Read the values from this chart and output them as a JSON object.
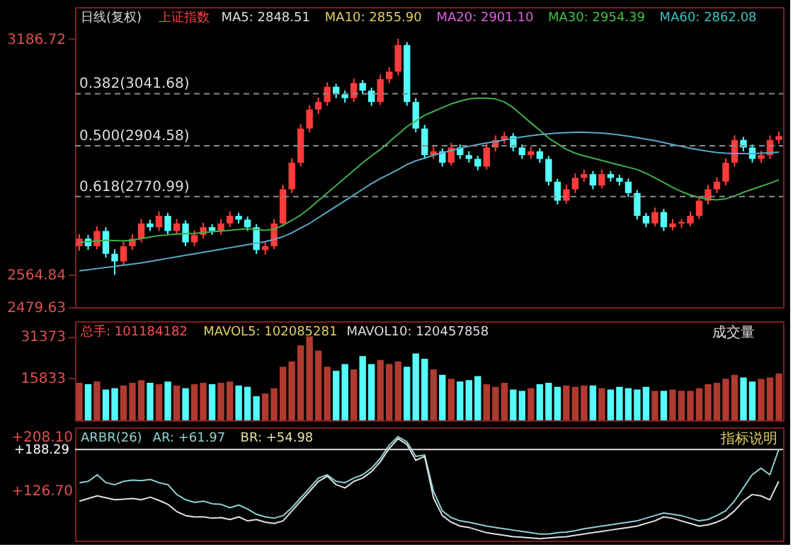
{
  "chart_data": [
    {
      "type": "candlestick",
      "title": "上证指数",
      "subtitle": "日线(复权)",
      "annotations": [
        "MA5: 2848.51",
        "MA10: 2855.90",
        "MA20: 2901.10",
        "MA30: 2954.39",
        "MA60: 2862.08"
      ],
      "categories": [
        null,
        null,
        null,
        null,
        null,
        null,
        null,
        null,
        null,
        null,
        null,
        null,
        null,
        null,
        null,
        null,
        null,
        null,
        null,
        null,
        null,
        null,
        null,
        null,
        null,
        null,
        null,
        null,
        null,
        null,
        null,
        null,
        null,
        null,
        null,
        null,
        null,
        null,
        null,
        null,
        null,
        null,
        null,
        null,
        null,
        null,
        null,
        null,
        null,
        null,
        null,
        null,
        null,
        null,
        null,
        null,
        null,
        null,
        null,
        null,
        null,
        null,
        null,
        null,
        null,
        null,
        null,
        null,
        null,
        null,
        null,
        null,
        null,
        null,
        null,
        null,
        null,
        null,
        null,
        null
      ],
      "ohlc": [
        [
          2640,
          2672,
          2628,
          2660
        ],
        [
          2660,
          2670,
          2630,
          2640
        ],
        [
          2640,
          2692,
          2632,
          2680
        ],
        [
          2680,
          2690,
          2610,
          2620
        ],
        [
          2620,
          2632,
          2564.84,
          2600
        ],
        [
          2600,
          2652,
          2590,
          2640
        ],
        [
          2640,
          2672,
          2630,
          2660
        ],
        [
          2660,
          2712,
          2650,
          2700
        ],
        [
          2700,
          2710,
          2680,
          2690
        ],
        [
          2690,
          2732,
          2680,
          2720
        ],
        [
          2720,
          2728,
          2670,
          2680
        ],
        [
          2680,
          2712,
          2670,
          2700
        ],
        [
          2700,
          2708,
          2640,
          2650
        ],
        [
          2650,
          2682,
          2640,
          2670
        ],
        [
          2670,
          2702,
          2660,
          2690
        ],
        [
          2690,
          2698,
          2670,
          2680
        ],
        [
          2680,
          2712,
          2670,
          2700
        ],
        [
          2700,
          2732,
          2690,
          2720
        ],
        [
          2720,
          2728,
          2700,
          2710
        ],
        [
          2710,
          2718,
          2680,
          2690
        ],
        [
          2690,
          2698,
          2620,
          2630
        ],
        [
          2630,
          2652,
          2618,
          2640
        ],
        [
          2640,
          2712,
          2632,
          2700
        ],
        [
          2700,
          2802,
          2692,
          2790
        ],
        [
          2790,
          2872,
          2780,
          2860
        ],
        [
          2860,
          2962,
          2850,
          2950
        ],
        [
          2950,
          3012,
          2940,
          3000
        ],
        [
          3000,
          3032,
          2988,
          3020
        ],
        [
          3020,
          3072,
          3010,
          3060
        ],
        [
          3060,
          3068,
          3030,
          3040
        ],
        [
          3040,
          3050,
          3018,
          3030
        ],
        [
          3030,
          3082,
          3020,
          3070
        ],
        [
          3070,
          3078,
          3040,
          3050
        ],
        [
          3050,
          3058,
          3010,
          3020
        ],
        [
          3020,
          3092,
          3012,
          3080
        ],
        [
          3080,
          3112,
          3070,
          3100
        ],
        [
          3100,
          3186.72,
          3090,
          3170
        ],
        [
          3170,
          3178,
          3010,
          3020
        ],
        [
          3020,
          3030,
          2940,
          2950
        ],
        [
          2950,
          2960,
          2870,
          2880
        ],
        [
          2880,
          2902,
          2870,
          2890
        ],
        [
          2890,
          2898,
          2850,
          2860
        ],
        [
          2860,
          2912,
          2852,
          2900
        ],
        [
          2900,
          2908,
          2870,
          2880
        ],
        [
          2880,
          2890,
          2860,
          2870
        ],
        [
          2870,
          2878,
          2840,
          2850
        ],
        [
          2850,
          2912,
          2842,
          2900
        ],
        [
          2900,
          2932,
          2890,
          2920
        ],
        [
          2920,
          2942,
          2910,
          2930
        ],
        [
          2930,
          2938,
          2890,
          2900
        ],
        [
          2900,
          2908,
          2870,
          2880
        ],
        [
          2880,
          2902,
          2870,
          2890
        ],
        [
          2890,
          2898,
          2860,
          2870
        ],
        [
          2870,
          2878,
          2800,
          2810
        ],
        [
          2810,
          2818,
          2750,
          2760
        ],
        [
          2760,
          2802,
          2752,
          2790
        ],
        [
          2790,
          2832,
          2780,
          2820
        ],
        [
          2820,
          2842,
          2810,
          2830
        ],
        [
          2830,
          2838,
          2790,
          2800
        ],
        [
          2800,
          2842,
          2792,
          2830
        ],
        [
          2830,
          2838,
          2810,
          2820
        ],
        [
          2820,
          2828,
          2800,
          2810
        ],
        [
          2810,
          2818,
          2770,
          2780
        ],
        [
          2780,
          2788,
          2710,
          2720
        ],
        [
          2720,
          2728,
          2690,
          2700
        ],
        [
          2700,
          2742,
          2692,
          2730
        ],
        [
          2730,
          2738,
          2680,
          2690
        ],
        [
          2690,
          2712,
          2682,
          2700
        ],
        [
          2700,
          2712,
          2688,
          2704
        ],
        [
          2700,
          2732,
          2692,
          2720
        ],
        [
          2720,
          2772,
          2712,
          2760
        ],
        [
          2760,
          2802,
          2750,
          2790
        ],
        [
          2790,
          2822,
          2780,
          2810
        ],
        [
          2810,
          2872,
          2800,
          2860
        ],
        [
          2860,
          2932,
          2850,
          2920
        ],
        [
          2920,
          2928,
          2890,
          2900
        ],
        [
          2900,
          2908,
          2860,
          2870
        ],
        [
          2870,
          2892,
          2860,
          2880
        ],
        [
          2880,
          2932,
          2870,
          2920
        ],
        [
          2920,
          2942,
          2910,
          2930
        ]
      ],
      "colors": [
        "#ff3b3b",
        "#54fcfc",
        "#ff3b3b",
        "#54fcfc",
        "#54fcfc",
        "#ff3b3b",
        "#ff3b3b",
        "#ff3b3b",
        "#54fcfc",
        "#ff3b3b",
        "#54fcfc",
        "#ff3b3b",
        "#54fcfc",
        "#ff3b3b",
        "#ff3b3b",
        "#54fcfc",
        "#ff3b3b",
        "#ff3b3b",
        "#54fcfc",
        "#54fcfc",
        "#54fcfc",
        "#ff3b3b",
        "#ff3b3b",
        "#ff3b3b",
        "#ff3b3b",
        "#ff3b3b",
        "#ff3b3b",
        "#ff3b3b",
        "#ff3b3b",
        "#54fcfc",
        "#54fcfc",
        "#ff3b3b",
        "#54fcfc",
        "#54fcfc",
        "#ff3b3b",
        "#ff3b3b",
        "#ff3b3b",
        "#54fcfc",
        "#54fcfc",
        "#54fcfc",
        "#ff3b3b",
        "#54fcfc",
        "#ff3b3b",
        "#54fcfc",
        "#54fcfc",
        "#54fcfc",
        "#ff3b3b",
        "#ff3b3b",
        "#ff3b3b",
        "#54fcfc",
        "#54fcfc",
        "#ff3b3b",
        "#54fcfc",
        "#54fcfc",
        "#54fcfc",
        "#ff3b3b",
        "#ff3b3b",
        "#ff3b3b",
        "#54fcfc",
        "#ff3b3b",
        "#54fcfc",
        "#54fcfc",
        "#54fcfc",
        "#54fcfc",
        "#54fcfc",
        "#ff3b3b",
        "#54fcfc",
        "#ff3b3b",
        "#ff3b3b",
        "#ff3b3b",
        "#ff3b3b",
        "#ff3b3b",
        "#ff3b3b",
        "#ff3b3b",
        "#ff3b3b",
        "#54fcfc",
        "#54fcfc",
        "#ff3b3b",
        "#ff3b3b",
        "#ff3b3b"
      ],
      "series": [
        {
          "type": "line",
          "color": "#3fb04a",
          "values": [
            2650,
            2652,
            2654,
            2656,
            2655,
            2654,
            2656,
            2660,
            2664,
            2668,
            2670,
            2672,
            2673,
            2674,
            2676,
            2678,
            2680,
            2682,
            2684,
            2686,
            2684,
            2682,
            2685,
            2695,
            2708,
            2722,
            2740,
            2760,
            2780,
            2800,
            2820,
            2840,
            2860,
            2878,
            2895,
            2915,
            2935,
            2955,
            2970,
            2985,
            2995,
            3005,
            3015,
            3022,
            3028,
            3030,
            3030,
            3028,
            3020,
            3005,
            2985,
            2965,
            2945,
            2925,
            2910,
            2895,
            2885,
            2878,
            2872,
            2866,
            2860,
            2854,
            2848,
            2842,
            2832,
            2820,
            2808,
            2795,
            2784,
            2775,
            2768,
            2764,
            2762,
            2765,
            2772,
            2782,
            2790,
            2798,
            2806,
            2815
          ]
        },
        {
          "type": "line",
          "color": "#5aa8c8",
          "values": [
            2575,
            2578,
            2581,
            2584,
            2587,
            2590,
            2593,
            2596,
            2600,
            2604,
            2608,
            2612,
            2616,
            2620,
            2624,
            2628,
            2632,
            2636,
            2640,
            2644,
            2648,
            2652,
            2658,
            2665,
            2675,
            2688,
            2700,
            2715,
            2730,
            2745,
            2760,
            2775,
            2790,
            2805,
            2818,
            2830,
            2842,
            2855,
            2865,
            2872,
            2880,
            2886,
            2892,
            2898,
            2903,
            2908,
            2912,
            2916,
            2920,
            2924,
            2928,
            2931,
            2934,
            2936,
            2938,
            2939,
            2940,
            2940,
            2939,
            2938,
            2936,
            2933,
            2930,
            2926,
            2922,
            2918,
            2913,
            2908,
            2903,
            2898,
            2894,
            2890,
            2887,
            2885,
            2884,
            2884,
            2884,
            2885,
            2886,
            2888
          ]
        }
      ],
      "ylim": [
        2479.63,
        3270
      ],
      "yticks": [
        2479.63,
        2564.84,
        3186.72
      ],
      "tick_labels": "y",
      "grid": false,
      "ref_lines": [
        {
          "axis": "y",
          "value": 3041.68,
          "label": "0.382(3041.68)",
          "color": "#8a8a8a",
          "line_style": "dashed"
        },
        {
          "axis": "y",
          "value": 2904.58,
          "label": "0.500(2904.58)",
          "color": "#8a8a8a",
          "line_style": "dashed"
        },
        {
          "axis": "y",
          "value": 2770.99,
          "label": "0.618(2770.99)",
          "color": "#8a8a8a",
          "line_style": "dashed"
        }
      ]
    },
    {
      "type": "bar",
      "annotations": [
        "总手: 101184182",
        "MAVOL5: 102085281",
        "MAVOL10: 120457858",
        "成交量"
      ],
      "categories": [
        null,
        null,
        null,
        null,
        null,
        null,
        null,
        null,
        null,
        null,
        null,
        null,
        null,
        null,
        null,
        null,
        null,
        null,
        null,
        null,
        null,
        null,
        null,
        null,
        null,
        null,
        null,
        null,
        null,
        null,
        null,
        null,
        null,
        null,
        null,
        null,
        null,
        null,
        null,
        null,
        null,
        null,
        null,
        null,
        null,
        null,
        null,
        null,
        null,
        null,
        null,
        null,
        null,
        null,
        null,
        null,
        null,
        null,
        null,
        null,
        null,
        null,
        null,
        null,
        null,
        null,
        null,
        null,
        null,
        null,
        null,
        null,
        null,
        null,
        null,
        null,
        null,
        null,
        null,
        null
      ],
      "values": [
        14000,
        13500,
        14500,
        11500,
        12000,
        13000,
        14000,
        15000,
        14000,
        13500,
        14500,
        13000,
        12000,
        13500,
        14000,
        13500,
        14000,
        14500,
        13000,
        12500,
        9000,
        10000,
        12000,
        20000,
        22000,
        28000,
        31373,
        26000,
        20000,
        18500,
        21000,
        19000,
        24000,
        21000,
        22500,
        21000,
        22000,
        20000,
        25000,
        23000,
        19000,
        17000,
        15500,
        14500,
        15000,
        16500,
        13500,
        12500,
        14000,
        11500,
        11000,
        12000,
        13500,
        14000,
        12500,
        13000,
        12500,
        13000,
        13000,
        12000,
        11500,
        12500,
        12000,
        11500,
        12500,
        11000,
        11000,
        11500,
        11000,
        11000,
        12000,
        13500,
        14000,
        15500,
        17000,
        16000,
        14500,
        15500,
        16000,
        17500
      ],
      "colors": [
        "#b03a30",
        "#54fcfc",
        "#b03a30",
        "#54fcfc",
        "#54fcfc",
        "#b03a30",
        "#b03a30",
        "#b03a30",
        "#54fcfc",
        "#b03a30",
        "#54fcfc",
        "#b03a30",
        "#54fcfc",
        "#b03a30",
        "#b03a30",
        "#54fcfc",
        "#b03a30",
        "#b03a30",
        "#54fcfc",
        "#54fcfc",
        "#54fcfc",
        "#b03a30",
        "#b03a30",
        "#b03a30",
        "#b03a30",
        "#b03a30",
        "#b03a30",
        "#b03a30",
        "#b03a30",
        "#54fcfc",
        "#54fcfc",
        "#b03a30",
        "#54fcfc",
        "#54fcfc",
        "#b03a30",
        "#b03a30",
        "#b03a30",
        "#54fcfc",
        "#54fcfc",
        "#54fcfc",
        "#b03a30",
        "#54fcfc",
        "#b03a30",
        "#54fcfc",
        "#54fcfc",
        "#54fcfc",
        "#b03a30",
        "#b03a30",
        "#b03a30",
        "#54fcfc",
        "#54fcfc",
        "#b03a30",
        "#54fcfc",
        "#54fcfc",
        "#54fcfc",
        "#b03a30",
        "#b03a30",
        "#b03a30",
        "#54fcfc",
        "#b03a30",
        "#54fcfc",
        "#54fcfc",
        "#54fcfc",
        "#54fcfc",
        "#54fcfc",
        "#b03a30",
        "#54fcfc",
        "#b03a30",
        "#b03a30",
        "#b03a30",
        "#b03a30",
        "#b03a30",
        "#b03a30",
        "#b03a30",
        "#b03a30",
        "#54fcfc",
        "#54fcfc",
        "#b03a30",
        "#b03a30",
        "#b03a30"
      ],
      "ylim": [
        0,
        37000
      ],
      "yticks": [
        15833,
        31373
      ],
      "tick_labels": "y",
      "grid": false
    },
    {
      "type": "line",
      "title": "ARBR(26)",
      "annotations": [
        "AR: +61.97",
        "BR: +54.98",
        "指标说明"
      ],
      "categories": [
        null,
        null,
        null,
        null,
        null,
        null,
        null,
        null,
        null,
        null,
        null,
        null,
        null,
        null,
        null,
        null,
        null,
        null,
        null,
        null,
        null,
        null,
        null,
        null,
        null,
        null,
        null,
        null,
        null,
        null,
        null,
        null,
        null,
        null,
        null,
        null,
        null,
        null,
        null,
        null,
        null,
        null,
        null,
        null,
        null,
        null,
        null,
        null,
        null,
        null,
        null,
        null,
        null,
        null,
        null,
        null,
        null,
        null,
        null,
        null,
        null,
        null,
        null,
        null,
        null,
        null,
        null,
        null,
        null,
        null,
        null,
        null,
        null,
        null,
        null,
        null,
        null,
        null,
        null,
        null
      ],
      "series": [
        {
          "color": "#8fd0d0",
          "values": [
            138,
            140,
            150,
            138,
            135,
            140,
            142,
            141,
            143,
            138,
            135,
            120,
            112,
            108,
            110,
            106,
            105,
            100,
            104,
            98,
            90,
            86,
            84,
            88,
            100,
            115,
            130,
            145,
            150,
            140,
            138,
            145,
            150,
            160,
            175,
            195,
            208,
            200,
            178,
            180,
            125,
            95,
            85,
            80,
            78,
            75,
            72,
            70,
            68,
            66,
            64,
            62,
            60,
            60,
            62,
            63,
            65,
            68,
            70,
            72,
            74,
            76,
            78,
            80,
            84,
            88,
            92,
            90,
            88,
            84,
            80,
            82,
            88,
            95,
            110,
            130,
            150,
            160,
            150,
            188
          ]
        },
        {
          "color": "#e0e0e0",
          "values": [
            110,
            114,
            118,
            115,
            112,
            113,
            114,
            112,
            116,
            111,
            105,
            94,
            88,
            86,
            86,
            84,
            85,
            82,
            86,
            80,
            82,
            78,
            76,
            80,
            95,
            110,
            125,
            140,
            148,
            135,
            130,
            140,
            145,
            155,
            170,
            190,
            205,
            196,
            172,
            178,
            115,
            88,
            78,
            72,
            70,
            66,
            62,
            60,
            58,
            56,
            55,
            54,
            53,
            54,
            55,
            56,
            58,
            60,
            62,
            64,
            66,
            68,
            70,
            72,
            76,
            80,
            86,
            84,
            80,
            76,
            72,
            74,
            78,
            84,
            95,
            110,
            120,
            118,
            112,
            140
          ]
        }
      ],
      "ylim": [
        50,
        222
      ],
      "yticks": [
        {
          "value": 208.1,
          "label": "+208.10"
        },
        {
          "value": 126.7,
          "label": "+126.70"
        }
      ],
      "tick_labels": "y",
      "grid": false,
      "marker": "none",
      "line_style": "solid",
      "ref_lines": [
        {
          "axis": "y",
          "value": 188.29,
          "label": "+188.29",
          "color": "#dddddd",
          "line_style": "solid"
        }
      ]
    }
  ]
}
